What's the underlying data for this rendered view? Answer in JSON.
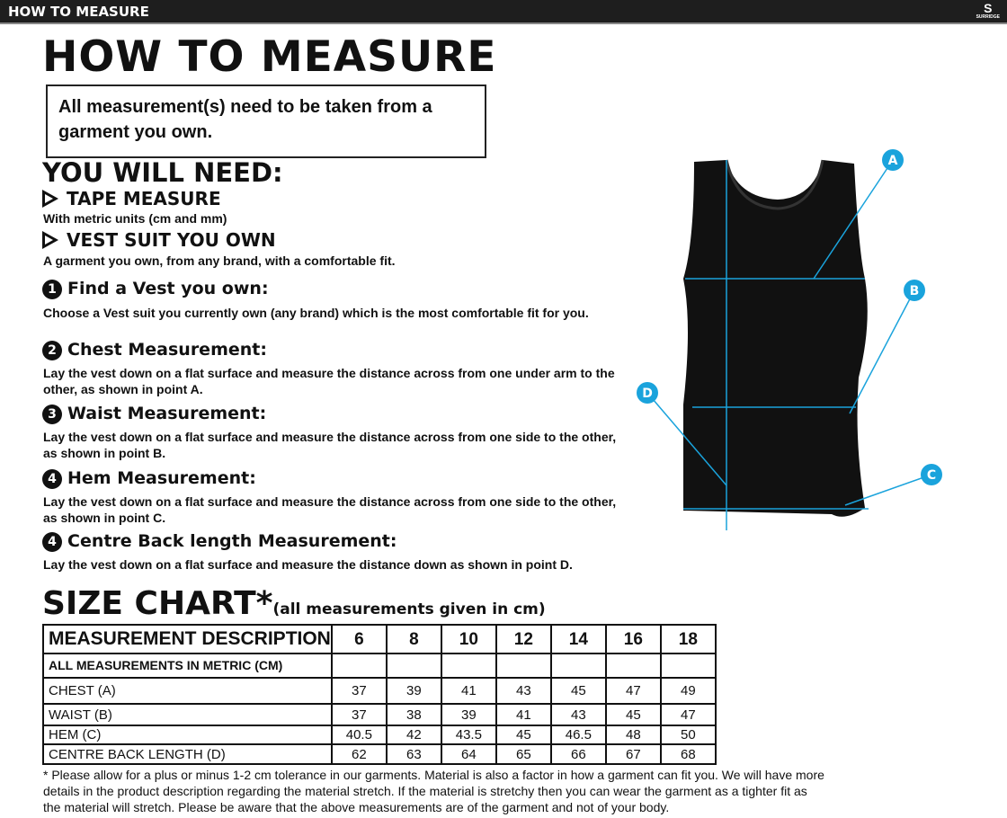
{
  "topbar": {
    "title": "HOW TO MEASURE",
    "brand": "SURRIDGE"
  },
  "title": "HOW TO MEASURE",
  "notice": "All measurement(s) need to be taken from a garment you own.",
  "you_will_need": "YOU WILL NEED:",
  "needs": [
    {
      "label": "TAPE MEASURE",
      "desc": "With metric units (cm and mm)"
    },
    {
      "label": "VEST SUIT YOU OWN",
      "desc": "A garment you own, from any brand, with a comfortable fit."
    }
  ],
  "steps": [
    {
      "num": "1",
      "title": "Find a Vest you own:",
      "text": "Choose a Vest suit you currently own (any brand) which is the most comfortable fit for you."
    },
    {
      "num": "2",
      "title": "Chest Measurement:",
      "text": "Lay the vest down on a flat surface and measure the distance across from one under arm to the other, as shown in point A."
    },
    {
      "num": "3",
      "title": "Waist Measurement:",
      "text": "Lay the vest down on a flat surface and measure the distance across from one side to the other, as shown in point B."
    },
    {
      "num": "4",
      "title": "Hem Measurement:",
      "text": "Lay the vest down on a flat surface and measure the distance across from one side to the other, as shown in point C."
    },
    {
      "num": "4",
      "title": "Centre Back length Measurement:",
      "text": "Lay the vest down on a flat surface and measure the distance down as shown in point D."
    }
  ],
  "size_chart": {
    "title": "SIZE CHART*",
    "note": "(all measurements given in cm)",
    "header": "MEASUREMENT DESCRIPTION",
    "sizes": [
      "6",
      "8",
      "10",
      "12",
      "14",
      "16",
      "18"
    ],
    "subheader": "ALL MEASUREMENTS IN METRIC (CM)",
    "rows": [
      {
        "label": "CHEST (A)",
        "values": [
          "37",
          "39",
          "41",
          "43",
          "45",
          "47",
          "49"
        ]
      },
      {
        "label": "WAIST (B)",
        "values": [
          "37",
          "38",
          "39",
          "41",
          "43",
          "45",
          "47"
        ]
      },
      {
        "label": "HEM (C)",
        "values": [
          "40.5",
          "42",
          "43.5",
          "45",
          "46.5",
          "48",
          "50"
        ]
      },
      {
        "label": "CENTRE BACK LENGTH (D)",
        "values": [
          "62",
          "63",
          "64",
          "65",
          "66",
          "67",
          "68"
        ]
      }
    ]
  },
  "footnote": "* Please allow for a plus or minus 1-2 cm tolerance in our garments. Material is also a factor in how a garment can fit you. We will have more details in the product description regarding the material stretch.  If the material is stretchy then you can wear the garment as a tighter fit as the material will stretch.  Please be aware that the above measurements are of the garment and not of your body.",
  "diagram": {
    "points": [
      "A",
      "B",
      "C",
      "D"
    ],
    "accent": "#1aa3dc"
  }
}
